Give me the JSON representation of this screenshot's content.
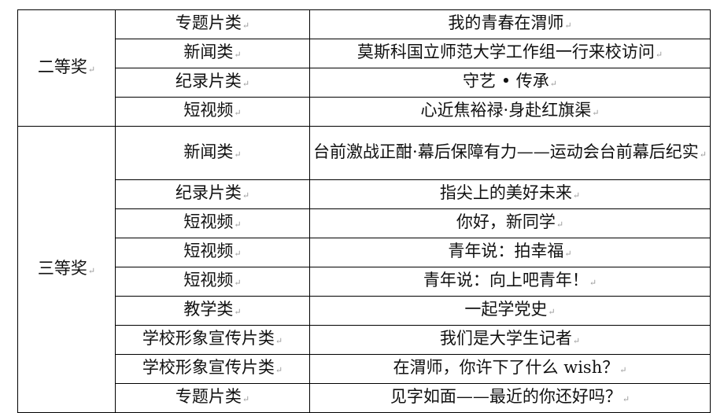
{
  "mark": "↵",
  "groups": [
    {
      "award": "二等奖",
      "rows": [
        {
          "category": "专题片类",
          "title": "我的青春在渭师"
        },
        {
          "category": "新闻类",
          "title": "莫斯科国立师范大学工作组一行来校访问"
        },
        {
          "category": "纪录片类",
          "title": "守艺 • 传承"
        },
        {
          "category": "短视频",
          "title": "心近焦裕禄·身赴红旗渠"
        }
      ]
    },
    {
      "award": "三等奖",
      "rows": [
        {
          "category": "新闻类",
          "title": "台前激战正酣·幕后保障有力——运动会台前幕后纪实"
        },
        {
          "category": "纪录片类",
          "title": "指尖上的美好未来"
        },
        {
          "category": "短视频",
          "title": "你好，新同学"
        },
        {
          "category": "短视频",
          "title": "青年说：拍幸福"
        },
        {
          "category": "短视频",
          "title": "青年说：向上吧青年！"
        },
        {
          "category": "教学类",
          "title": "一起学党史"
        },
        {
          "category": "学校形象宣传片类",
          "title": "我们是大学生记者"
        },
        {
          "category": "学校形象宣传片类",
          "title": "在渭师，你许下了什么 wish？"
        },
        {
          "category": "专题片类",
          "title": "见字如面——最近的你还好吗？"
        }
      ]
    }
  ]
}
